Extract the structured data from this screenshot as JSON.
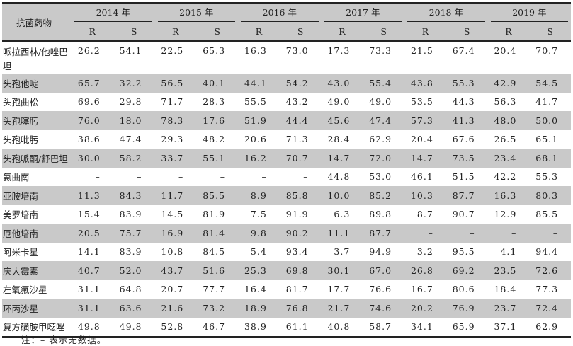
{
  "table": {
    "header_drug": "抗菌药物",
    "years": [
      "2014 年",
      "2015 年",
      "2016 年",
      "2017 年",
      "2018 年",
      "2019 年"
    ],
    "sub": [
      "R",
      "S"
    ],
    "shade_color": "#c9c9c9",
    "rows": [
      {
        "name": "哌拉西林/他唑巴坦",
        "values": [
          "26.2",
          "54.1",
          "22.5",
          "65.3",
          "16.3",
          "73.0",
          "17.3",
          "73.3",
          "21.5",
          "67.4",
          "20.4",
          "70.7"
        ]
      },
      {
        "name": "头孢他啶",
        "values": [
          "65.7",
          "32.2",
          "56.5",
          "40.1",
          "44.1",
          "54.2",
          "43.0",
          "55.4",
          "43.8",
          "55.3",
          "42.9",
          "54.5"
        ]
      },
      {
        "name": "头孢曲松",
        "values": [
          "69.6",
          "29.8",
          "71.7",
          "28.3",
          "55.5",
          "43.2",
          "49.0",
          "49.0",
          "53.5",
          "44.3",
          "56.3",
          "41.7"
        ]
      },
      {
        "name": "头孢噻肟",
        "values": [
          "76.0",
          "18.0",
          "78.3",
          "17.6",
          "51.9",
          "44.4",
          "45.6",
          "47.4",
          "57.3",
          "41.3",
          "48.0",
          "50.0"
        ]
      },
      {
        "name": "头孢吡肟",
        "values": [
          "38.6",
          "47.4",
          "29.3",
          "48.2",
          "20.6",
          "71.3",
          "28.4",
          "62.9",
          "20.4",
          "67.6",
          "26.5",
          "65.1"
        ]
      },
      {
        "name": "头孢哌酮/舒巴坦",
        "values": [
          "30.0",
          "58.2",
          "33.7",
          "55.1",
          "16.2",
          "70.7",
          "14.7",
          "72.0",
          "14.7",
          "73.5",
          "23.4",
          "68.1"
        ]
      },
      {
        "name": "氨曲南",
        "values": [
          "–",
          "–",
          "–",
          "–",
          "–",
          "–",
          "44.8",
          "53.0",
          "46.1",
          "51.5",
          "42.2",
          "55.3"
        ]
      },
      {
        "name": "亚胺培南",
        "values": [
          "11.3",
          "84.3",
          "11.7",
          "85.5",
          "8.9",
          "85.8",
          "10.0",
          "85.2",
          "10.3",
          "87.7",
          "16.3",
          "80.3"
        ]
      },
      {
        "name": "美罗培南",
        "values": [
          "15.4",
          "83.9",
          "14.5",
          "81.9",
          "7.5",
          "91.9",
          "6.3",
          "89.8",
          "8.7",
          "90.7",
          "12.9",
          "85.5"
        ]
      },
      {
        "name": "厄他培南",
        "values": [
          "20.5",
          "75.7",
          "16.9",
          "81.4",
          "9.8",
          "90.2",
          "11.1",
          "87.7",
          "–",
          "–",
          "–",
          "–"
        ]
      },
      {
        "name": "阿米卡星",
        "values": [
          "14.1",
          "83.9",
          "10.8",
          "84.5",
          "5.4",
          "93.4",
          "3.7",
          "94.9",
          "3.2",
          "95.5",
          "4.1",
          "94.4"
        ]
      },
      {
        "name": "庆大霉素",
        "values": [
          "40.7",
          "52.0",
          "43.7",
          "51.6",
          "25.3",
          "69.8",
          "30.1",
          "67.0",
          "26.8",
          "69.2",
          "23.5",
          "72.6"
        ]
      },
      {
        "name": "左氧氟沙星",
        "values": [
          "31.1",
          "64.8",
          "20.7",
          "77.7",
          "16.4",
          "81.7",
          "17.7",
          "76.6",
          "16.7",
          "80.6",
          "18.4",
          "77.3"
        ]
      },
      {
        "name": "环丙沙星",
        "values": [
          "31.1",
          "63.6",
          "21.6",
          "73.2",
          "18.9",
          "76.8",
          "21.7",
          "74.6",
          "20.2",
          "76.9",
          "23.7",
          "72.4"
        ]
      },
      {
        "name": "复方磺胺甲噁唑",
        "values": [
          "49.8",
          "49.8",
          "52.8",
          "46.7",
          "38.9",
          "61.1",
          "40.8",
          "58.7",
          "34.1",
          "65.9",
          "37.1",
          "62.9"
        ]
      }
    ]
  },
  "note": "注：– 表示无数据。"
}
